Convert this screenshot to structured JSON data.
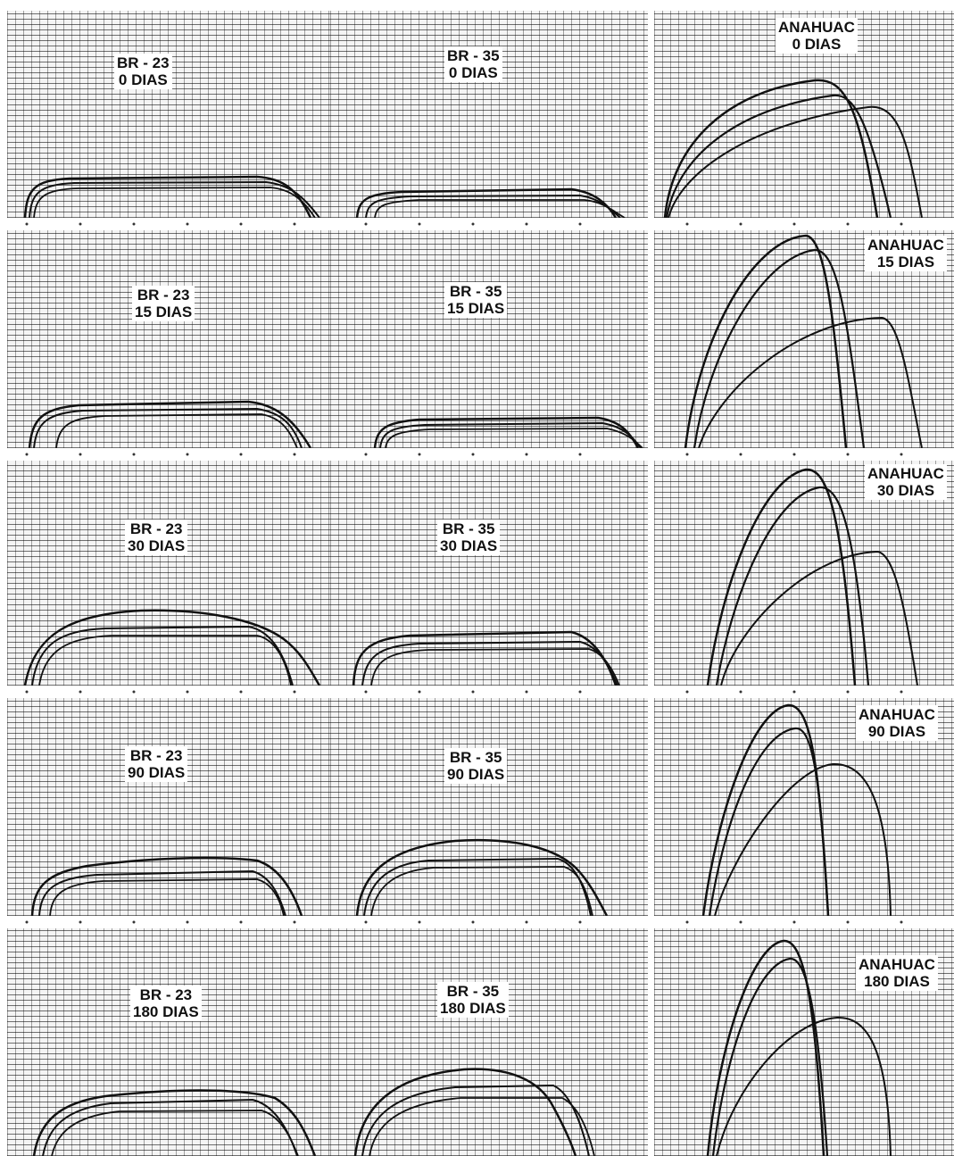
{
  "varieties": [
    "BR - 23",
    "BR - 35",
    "ANAHUAC"
  ],
  "storage_times": [
    "0 DIAS",
    "15 DIAS",
    "30 DIAS",
    "90 DIAS",
    "180 DIAS"
  ],
  "panels": [
    {
      "variety": "BR - 23",
      "time": "0 DIAS"
    },
    {
      "variety": "BR - 35",
      "time": "0 DIAS"
    },
    {
      "variety": "ANAHUAC",
      "time": "0 DIAS"
    },
    {
      "variety": "BR - 23",
      "time": "15 DIAS"
    },
    {
      "variety": "BR - 35",
      "time": "15 DIAS"
    },
    {
      "variety": "ANAHUAC",
      "time": "15 DIAS"
    },
    {
      "variety": "BR - 23",
      "time": "30 DIAS"
    },
    {
      "variety": "BR - 35",
      "time": "30 DIAS"
    },
    {
      "variety": "ANAHUAC",
      "time": "30 DIAS"
    },
    {
      "variety": "BR - 23",
      "time": "90 DIAS"
    },
    {
      "variety": "BR - 35",
      "time": "90 DIAS"
    },
    {
      "variety": "ANAHUAC",
      "time": "90 DIAS"
    },
    {
      "variety": "BR - 23",
      "time": "180 DIAS"
    },
    {
      "variety": "BR - 35",
      "time": "180 DIAS"
    },
    {
      "variety": "ANAHUAC",
      "time": "180 DIAS"
    }
  ],
  "colors": {
    "paper": "#f4f4f4",
    "grid": "#000000",
    "curve": "#111111",
    "label_bg": "#ffffff"
  }
}
